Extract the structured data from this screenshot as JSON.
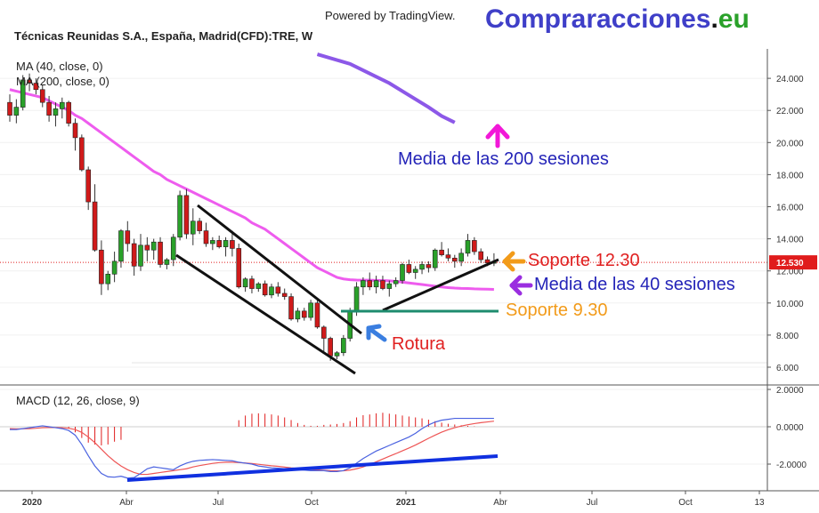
{
  "header": {
    "powered_by": "Powered by TradingView.",
    "brand_main": "Compraracciones",
    "brand_dot": ".",
    "brand_tld": "eu",
    "symbol_title": "Técnicas Reunidas S.A., España, Madrid(CFD):TRE, W"
  },
  "colors": {
    "up": "#2aa12a",
    "down": "#d01a1a",
    "ma40": "#ee5cee",
    "ma200": "#8c58e8",
    "support": "#e01c1c",
    "support_line": "#1e8c6e",
    "macd_line": "#4a62e0",
    "signal_line": "#ee5555",
    "hist": "#e01c1c",
    "trend": "#1030e0",
    "brand_blue": "#3f3fc8",
    "brand_green": "#2aa12a"
  },
  "chart_data": [
    {
      "type": "candlestick",
      "title": "Técnicas Reunidas S.A., España, Madrid(CFD):TRE, W",
      "ylim": [
        5,
        25.5
      ],
      "yticks": [
        "24.000",
        "22.000",
        "20.000",
        "18.000",
        "16.000",
        "14.000",
        "12.000",
        "10.000",
        "8.000",
        "6.000"
      ],
      "last_price_label": "12.530",
      "legend": [
        "MA (40, close, 0)",
        "MA (200, close, 0)"
      ],
      "ohlc": [
        [
          22.5,
          23.0,
          21.3,
          21.7
        ],
        [
          21.7,
          22.7,
          21.2,
          22.2
        ],
        [
          22.2,
          24.2,
          22.0,
          23.9
        ],
        [
          23.9,
          24.3,
          23.2,
          23.7
        ],
        [
          23.7,
          24.0,
          23.0,
          23.3
        ],
        [
          23.3,
          23.6,
          22.2,
          22.5
        ],
        [
          22.5,
          22.9,
          21.3,
          21.7
        ],
        [
          21.7,
          22.5,
          21.0,
          22.1
        ],
        [
          22.1,
          22.8,
          21.5,
          22.5
        ],
        [
          22.5,
          22.6,
          21.0,
          21.2
        ],
        [
          21.2,
          21.5,
          19.5,
          20.3
        ],
        [
          20.3,
          20.5,
          18.2,
          18.3
        ],
        [
          18.3,
          18.5,
          15.8,
          16.3
        ],
        [
          16.3,
          17.4,
          13.2,
          13.3
        ],
        [
          13.3,
          13.9,
          10.5,
          11.2
        ],
        [
          11.2,
          12.0,
          10.8,
          11.8
        ],
        [
          11.8,
          13.2,
          11.3,
          12.6
        ],
        [
          12.6,
          14.6,
          12.2,
          14.5
        ],
        [
          14.5,
          15.1,
          13.2,
          13.7
        ],
        [
          13.7,
          14.0,
          11.7,
          12.3
        ],
        [
          12.3,
          14.3,
          12.0,
          13.6
        ],
        [
          13.6,
          14.1,
          12.6,
          13.3
        ],
        [
          13.3,
          14.0,
          12.7,
          13.8
        ],
        [
          13.8,
          14.1,
          12.2,
          12.4
        ],
        [
          12.4,
          12.8,
          12.1,
          12.7
        ],
        [
          12.7,
          14.3,
          12.3,
          14.1
        ],
        [
          14.1,
          17.0,
          13.9,
          16.7
        ],
        [
          16.7,
          17.1,
          14.0,
          14.3
        ],
        [
          14.3,
          15.9,
          13.6,
          15.1
        ],
        [
          15.1,
          15.3,
          14.3,
          14.5
        ],
        [
          14.5,
          15.0,
          13.5,
          13.7
        ],
        [
          13.7,
          14.1,
          13.3,
          13.9
        ],
        [
          13.9,
          14.2,
          13.4,
          13.5
        ],
        [
          13.5,
          14.1,
          12.9,
          13.9
        ],
        [
          13.9,
          14.5,
          12.9,
          13.4
        ],
        [
          13.4,
          13.7,
          10.9,
          11.0
        ],
        [
          11.0,
          11.6,
          10.7,
          11.5
        ],
        [
          11.5,
          11.7,
          10.6,
          10.9
        ],
        [
          10.9,
          11.3,
          10.7,
          11.2
        ],
        [
          11.2,
          11.4,
          10.4,
          10.5
        ],
        [
          10.5,
          11.2,
          10.3,
          11.0
        ],
        [
          11.0,
          11.3,
          10.4,
          10.6
        ],
        [
          10.6,
          10.9,
          10.2,
          10.4
        ],
        [
          10.4,
          10.6,
          8.9,
          9.0
        ],
        [
          9.0,
          9.7,
          8.8,
          9.5
        ],
        [
          9.5,
          9.7,
          8.9,
          9.1
        ],
        [
          9.1,
          10.2,
          8.9,
          10.0
        ],
        [
          10.0,
          10.2,
          8.4,
          8.5
        ],
        [
          8.5,
          8.6,
          7.0,
          7.8
        ],
        [
          7.8,
          7.9,
          6.4,
          6.7
        ],
        [
          6.7,
          7.0,
          6.5,
          6.9
        ],
        [
          6.9,
          8.0,
          6.7,
          7.8
        ],
        [
          7.8,
          9.7,
          7.6,
          9.5
        ],
        [
          9.5,
          11.3,
          9.2,
          11.0
        ],
        [
          11.0,
          11.6,
          10.5,
          11.4
        ],
        [
          11.4,
          11.9,
          10.8,
          11.0
        ],
        [
          11.0,
          11.7,
          10.6,
          11.4
        ],
        [
          11.4,
          11.7,
          10.8,
          10.9
        ],
        [
          10.9,
          11.4,
          10.4,
          11.2
        ],
        [
          11.2,
          11.6,
          11.0,
          11.4
        ],
        [
          11.4,
          12.5,
          11.2,
          12.4
        ],
        [
          12.4,
          12.7,
          11.8,
          11.9
        ],
        [
          11.9,
          12.3,
          11.5,
          12.1
        ],
        [
          12.1,
          12.6,
          11.8,
          12.4
        ],
        [
          12.4,
          12.6,
          11.9,
          12.2
        ],
        [
          12.2,
          13.4,
          12.0,
          13.3
        ],
        [
          13.3,
          13.8,
          12.9,
          13.0
        ],
        [
          13.0,
          13.4,
          12.6,
          12.8
        ],
        [
          12.8,
          13.0,
          12.2,
          12.6
        ],
        [
          12.6,
          13.4,
          12.3,
          13.1
        ],
        [
          13.1,
          14.3,
          12.9,
          13.9
        ],
        [
          13.9,
          14.1,
          13.0,
          13.2
        ],
        [
          13.2,
          13.4,
          12.5,
          12.7
        ],
        [
          12.7,
          12.9,
          12.3,
          12.5
        ],
        [
          12.5,
          13.1,
          12.3,
          12.53
        ]
      ],
      "ma40": [
        23.3,
        23.2,
        23.1,
        23.0,
        22.9,
        22.8,
        22.6,
        22.4,
        22.2,
        22.0,
        21.7,
        21.5,
        21.2,
        20.9,
        20.6,
        20.3,
        20.0,
        19.7,
        19.4,
        19.1,
        18.8,
        18.5,
        18.2,
        18.0,
        17.7,
        17.5,
        17.3,
        17.1,
        16.9,
        16.7,
        16.5,
        16.3,
        16.1,
        15.9,
        15.7,
        15.5,
        15.3,
        15.0,
        14.8,
        14.6,
        14.3,
        14.0,
        13.7,
        13.4,
        13.1,
        12.8,
        12.5,
        12.2,
        12.0,
        11.8,
        11.6,
        11.5,
        11.45,
        11.43,
        11.42,
        11.42,
        11.41,
        11.4,
        11.38,
        11.35,
        11.3,
        11.25,
        11.2,
        11.15,
        11.1,
        11.05,
        11.0,
        10.96,
        10.93,
        10.91,
        10.9,
        10.88,
        10.87,
        10.86,
        10.85
      ],
      "ma200": [
        [
          47,
          25.5
        ],
        [
          52,
          24.9
        ],
        [
          55,
          24.3
        ],
        [
          58,
          23.7
        ],
        [
          60,
          23.2
        ],
        [
          62,
          22.7
        ],
        [
          64,
          22.2
        ],
        [
          66,
          21.65
        ],
        [
          68,
          21.25
        ]
      ]
    },
    {
      "type": "macd",
      "title": "MACD (12, 26, close, 9)",
      "ylim": [
        -3.6,
        2.0
      ],
      "yticks": [
        "2.0000",
        "0.0000",
        "-2.0000"
      ],
      "macd": [
        -0.15,
        -0.15,
        -0.1,
        -0.05,
        0.0,
        0.05,
        0.0,
        -0.05,
        -0.1,
        -0.2,
        -0.45,
        -0.95,
        -1.55,
        -2.1,
        -2.5,
        -2.68,
        -2.7,
        -2.65,
        -2.75,
        -2.72,
        -2.5,
        -2.25,
        -2.15,
        -2.2,
        -2.25,
        -2.3,
        -2.1,
        -1.95,
        -1.85,
        -1.8,
        -1.78,
        -1.76,
        -1.78,
        -1.8,
        -1.82,
        -1.9,
        -1.95,
        -2.0,
        -2.1,
        -2.15,
        -2.2,
        -2.22,
        -2.25,
        -2.28,
        -2.3,
        -2.32,
        -2.35,
        -2.35,
        -2.35,
        -2.4,
        -2.4,
        -2.35,
        -2.2,
        -1.95,
        -1.7,
        -1.5,
        -1.3,
        -1.15,
        -1.0,
        -0.85,
        -0.7,
        -0.55,
        -0.35,
        -0.1,
        0.1,
        0.25,
        0.35,
        0.4,
        0.45,
        0.45,
        0.45,
        0.45,
        0.45,
        0.45,
        0.45
      ],
      "signal": [
        -0.1,
        -0.11,
        -0.11,
        -0.1,
        -0.08,
        -0.05,
        -0.04,
        -0.04,
        -0.05,
        -0.08,
        -0.15,
        -0.3,
        -0.55,
        -0.85,
        -1.2,
        -1.55,
        -1.85,
        -2.1,
        -2.3,
        -2.45,
        -2.55,
        -2.55,
        -2.5,
        -2.45,
        -2.4,
        -2.35,
        -2.3,
        -2.25,
        -2.15,
        -2.08,
        -2.02,
        -1.96,
        -1.92,
        -1.9,
        -1.9,
        -1.92,
        -1.94,
        -1.97,
        -2.01,
        -2.05,
        -2.09,
        -2.12,
        -2.16,
        -2.2,
        -2.23,
        -2.26,
        -2.29,
        -2.31,
        -2.33,
        -2.35,
        -2.36,
        -2.36,
        -2.32,
        -2.25,
        -2.15,
        -2.02,
        -1.88,
        -1.73,
        -1.58,
        -1.44,
        -1.29,
        -1.14,
        -0.98,
        -0.8,
        -0.62,
        -0.45,
        -0.29,
        -0.16,
        -0.05,
        0.04,
        0.11,
        0.17,
        0.22,
        0.26,
        0.3
      ],
      "hist_start": 35,
      "hist": [
        0.35,
        0.6,
        0.7,
        0.72,
        0.7,
        0.66,
        0.6,
        0.5,
        0.36,
        0.2,
        0.1,
        0.05,
        0.05,
        0.1,
        0.12,
        0.15,
        0.2,
        0.3,
        0.5,
        0.62,
        0.66,
        0.72,
        0.75,
        0.7,
        0.66,
        0.6,
        0.55,
        0.5,
        0.45,
        0.38,
        0.3,
        0.22,
        0.16,
        0.12,
        0.08,
        0.05,
        0.02
      ],
      "time_axis": [
        "2020",
        "Abr",
        "Jul",
        "Oct",
        "2021",
        "Abr",
        "Jul",
        "Oct",
        "13"
      ]
    }
  ],
  "annotations": {
    "media200": "Media de las 200 sesiones",
    "media40": "Media de las 40 sesiones",
    "soporte1230": "Soporte 12.30",
    "soporte930": "Soporte 9.30",
    "rotura": "Rotura"
  }
}
